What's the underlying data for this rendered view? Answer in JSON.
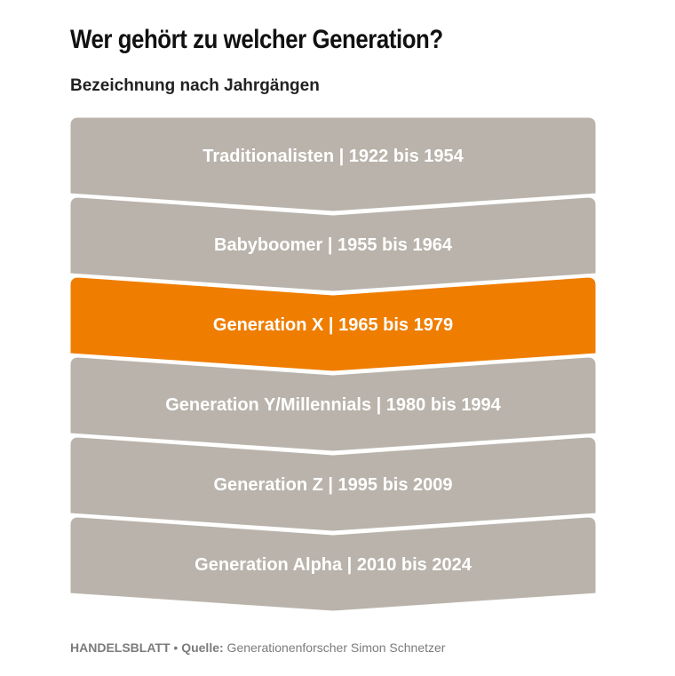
{
  "header": {
    "title": "Wer gehört zu welcher Generation?",
    "subtitle": "Bezeichnung nach Jahrgängen"
  },
  "colors": {
    "band": "#b9b3ab",
    "highlight": "#ef7d00",
    "text": "#ffffff"
  },
  "generations": [
    {
      "label": "Traditionalisten |  1922 bis 1954",
      "highlight": false
    },
    {
      "label": "Babyboomer | 1955 bis 1964",
      "highlight": false
    },
    {
      "label": "Generation X | 1965 bis 1979",
      "highlight": true
    },
    {
      "label": "Generation Y/Millennials | 1980 bis 1994",
      "highlight": false
    },
    {
      "label": "Generation Z | 1995 bis 2009",
      "highlight": false
    },
    {
      "label": "Generation Alpha | 2010 bis 2024",
      "highlight": false
    }
  ],
  "footer": {
    "brand": "HANDELSBLATT",
    "separator": " • ",
    "source_label": "Quelle:",
    "source_text": " Generationenforscher Simon Schnetzer"
  }
}
